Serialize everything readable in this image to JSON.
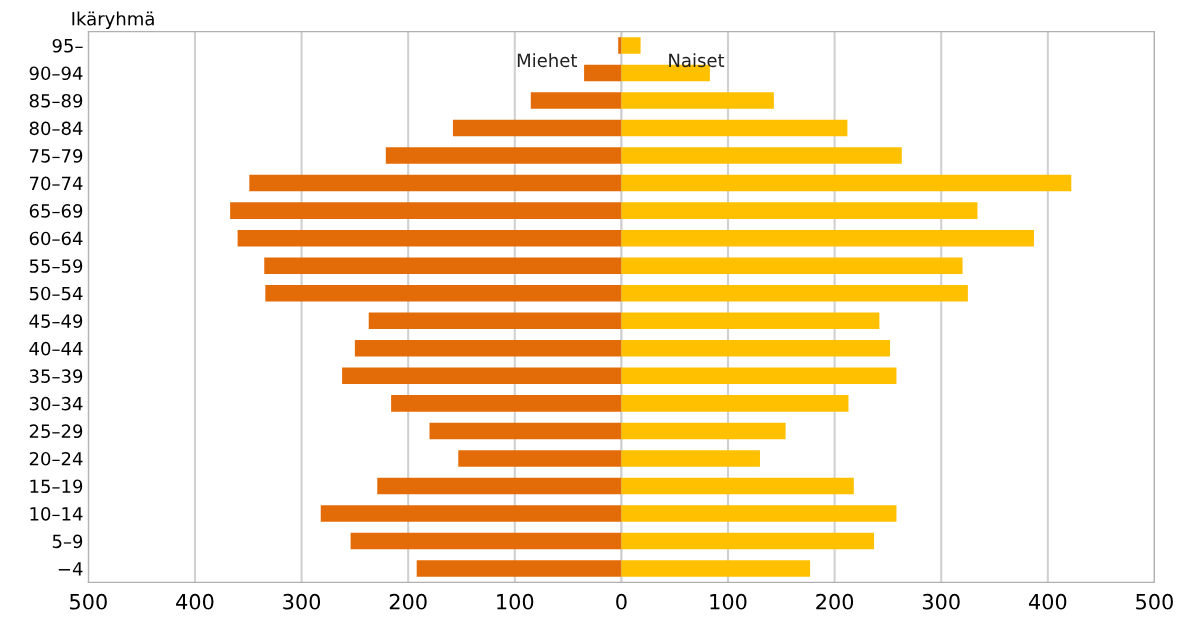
{
  "chart_data": {
    "type": "bar",
    "orientation": "horizontal",
    "ylabel": "Ikäryhmä",
    "categories": [
      "95–",
      "90–94",
      "85–89",
      "80–84",
      "75–79",
      "70–74",
      "65–69",
      "60–64",
      "55–59",
      "50–54",
      "45–49",
      "40–44",
      "35–39",
      "30–34",
      "25–29",
      "20–24",
      "15–19",
      "10–14",
      "5–9",
      "−4"
    ],
    "series": [
      {
        "name": "Miehet",
        "color": "#e36c09",
        "values": [
          -3,
          -35,
          -85,
          -158,
          -221,
          -349,
          -367,
          -360,
          -335,
          -334,
          -237,
          -250,
          -262,
          -216,
          -180,
          -153,
          -229,
          -282,
          -254,
          -192
        ]
      },
      {
        "name": "Naiset",
        "color": "#ffc000",
        "values": [
          18,
          83,
          143,
          212,
          263,
          422,
          334,
          387,
          320,
          325,
          242,
          252,
          258,
          213,
          154,
          130,
          218,
          258,
          237,
          177
        ]
      }
    ],
    "xlim": [
      -500,
      500
    ],
    "xticks": [
      {
        "value": -500,
        "label": "500"
      },
      {
        "value": -400,
        "label": "400"
      },
      {
        "value": -300,
        "label": "300"
      },
      {
        "value": -200,
        "label": "200"
      },
      {
        "value": -100,
        "label": "100"
      },
      0,
      100,
      200,
      300,
      400,
      500
    ],
    "grid": "x",
    "legend": false,
    "stacked": true
  }
}
